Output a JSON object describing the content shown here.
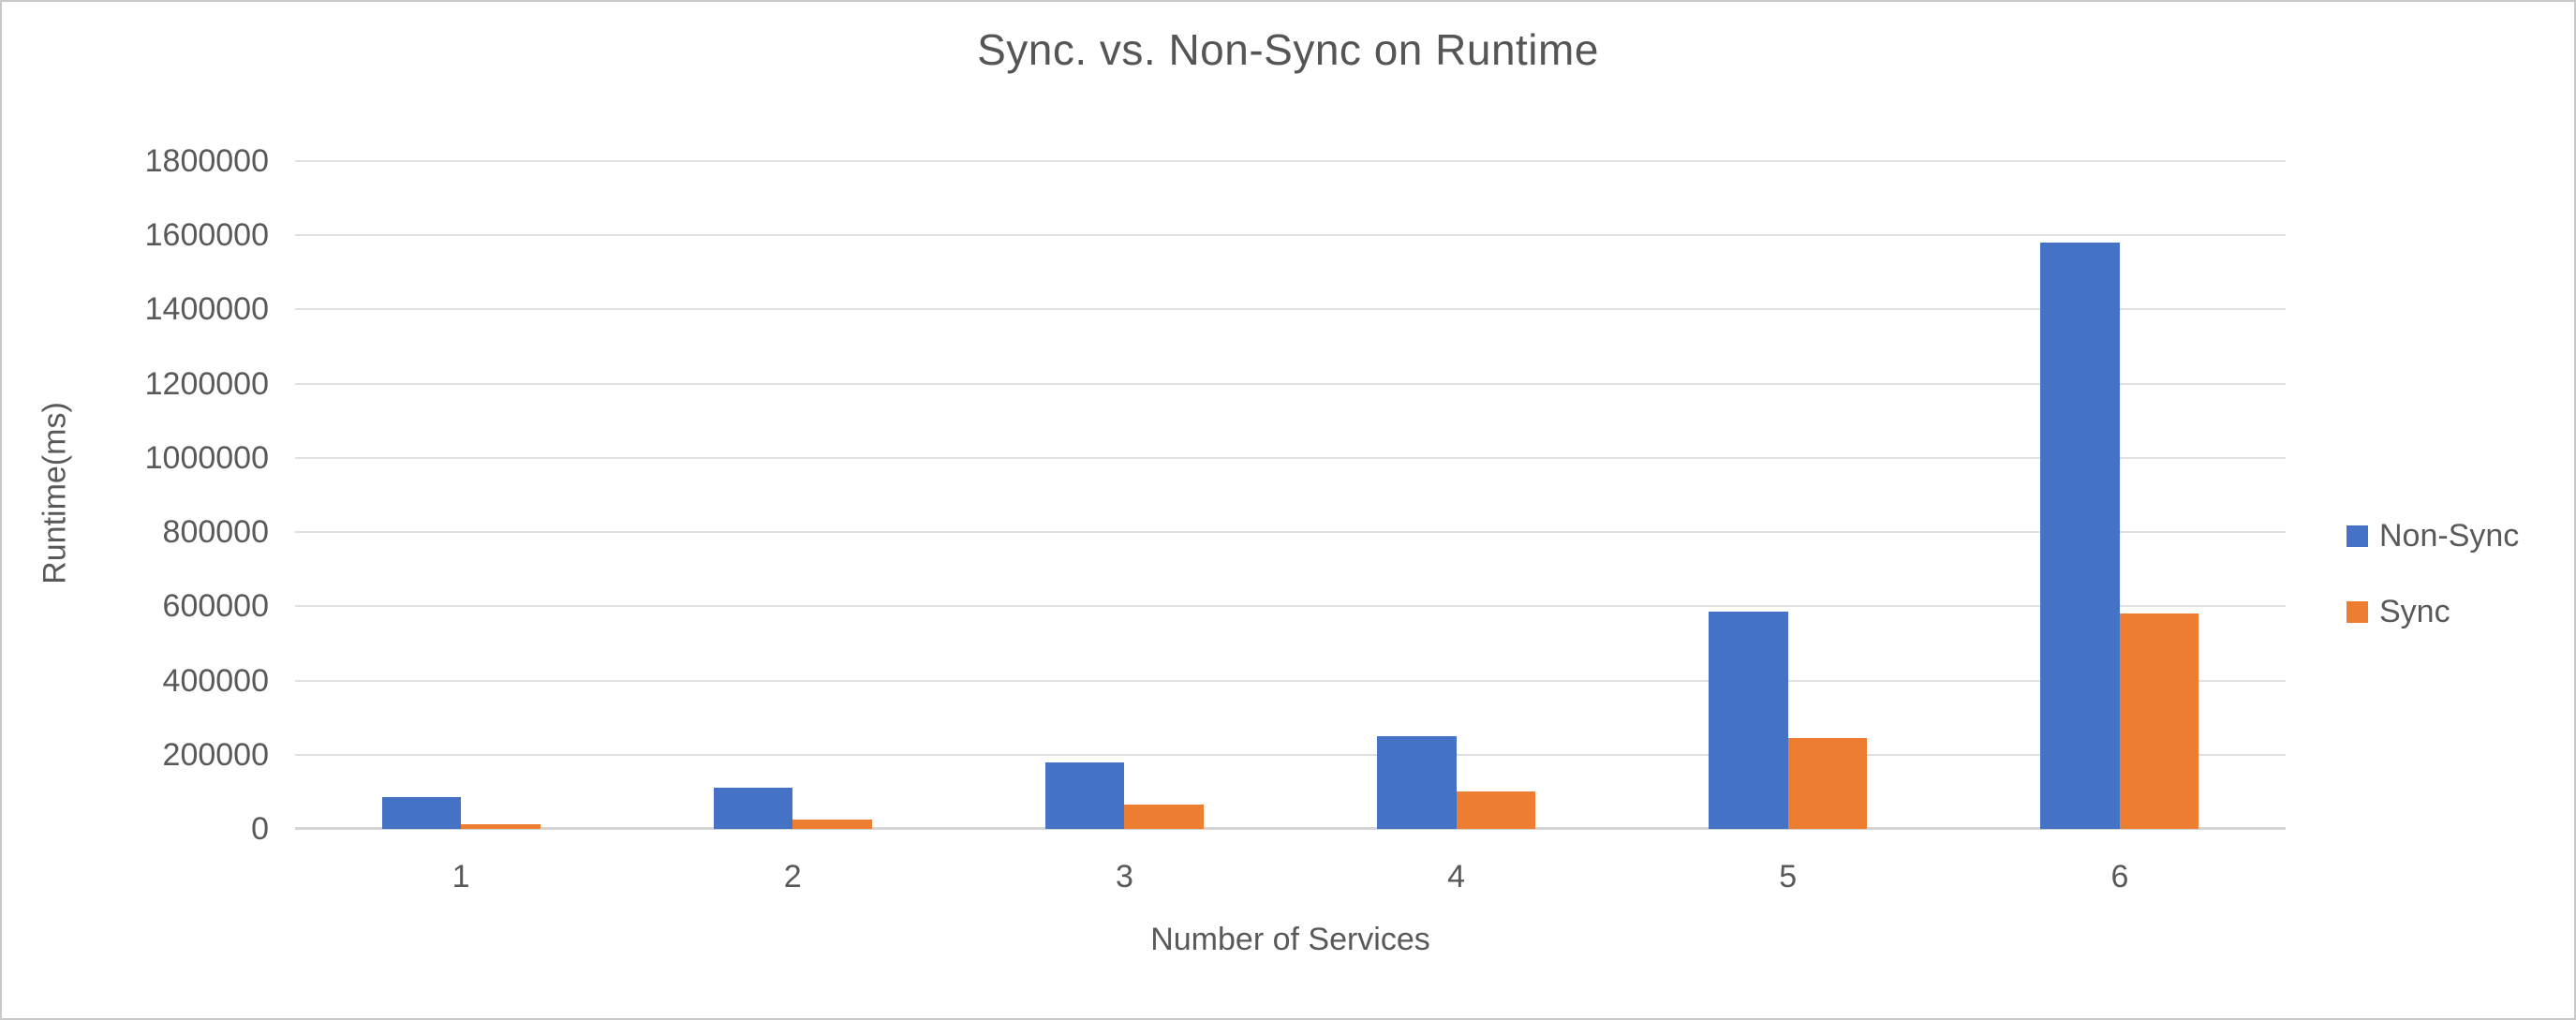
{
  "chart_data": {
    "type": "bar",
    "title": "Sync. vs. Non-Sync on Runtime",
    "xlabel": "Number of Services",
    "ylabel": "Runtime(ms)",
    "categories": [
      "1",
      "2",
      "3",
      "4",
      "5",
      "6"
    ],
    "series": [
      {
        "name": "Non-Sync",
        "color": "#4472C4",
        "values": [
          85000,
          110000,
          180000,
          250000,
          585000,
          1580000
        ]
      },
      {
        "name": "Sync",
        "color": "#ED7D31",
        "values": [
          13000,
          25000,
          65000,
          100000,
          245000,
          580000
        ]
      }
    ],
    "ylim": [
      0,
      1800000
    ],
    "y_ticks": [
      0,
      200000,
      400000,
      600000,
      800000,
      1000000,
      1200000,
      1400000,
      1600000,
      1800000
    ],
    "grid": "horizontal",
    "legend_position": "right",
    "colors": {
      "gridline": "#e0e0e0",
      "axis_line": "#d4d4d4",
      "text": "#595959",
      "title_text": "#555555"
    }
  }
}
